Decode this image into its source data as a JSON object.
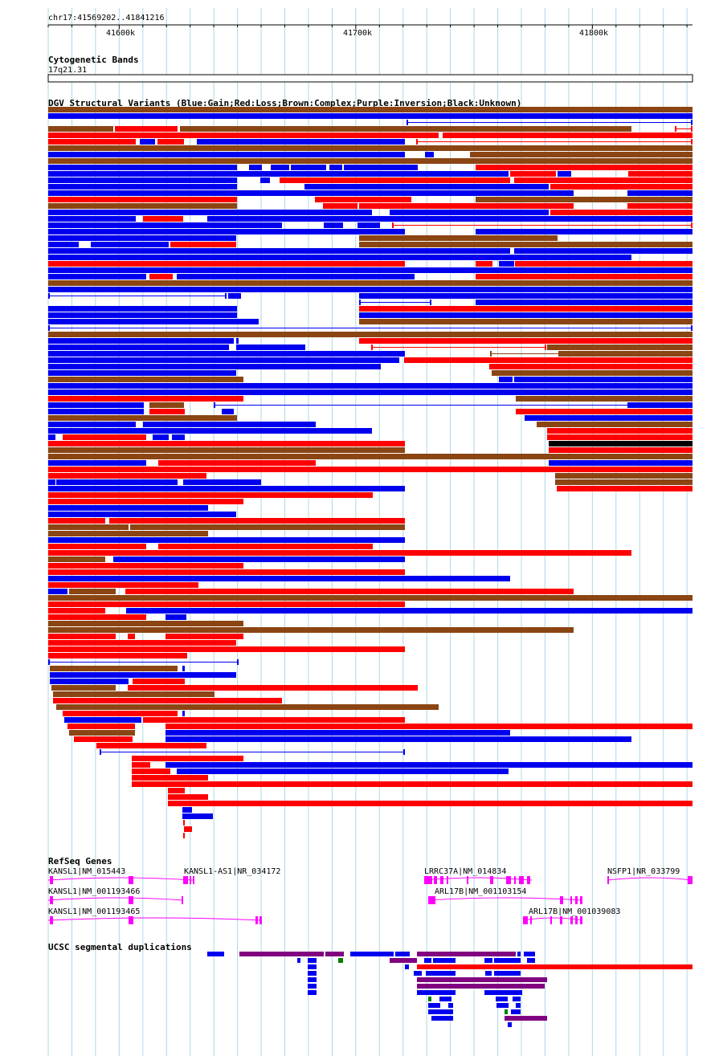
{
  "position": "chr17:41569202..41841216",
  "ruler": {
    "ticks": [
      {
        "label": "41600k",
        "bp": 41600000
      },
      {
        "label": "41700k",
        "bp": 41700000
      },
      {
        "label": "41800k",
        "bp": 41800000
      }
    ]
  },
  "tracks": {
    "cytobands": {
      "title": "Cytogenetic Bands",
      "band": "17q21.31"
    },
    "dgv": {
      "title": "DGV Structural Variants (Blue:Gain;Red:Loss;Brown:Complex;Purple:Inversion;Black:Unknown)"
    },
    "refseq": {
      "title": "RefSeq Genes"
    },
    "segdups": {
      "title": "UCSC segmental duplications"
    }
  },
  "colors": {
    "gain": "#0000ee",
    "loss": "#ff0000",
    "complex": "#8b4513",
    "unknown": "#000000",
    "gene": "#ff00ff",
    "segdup_blue": "#0000ee",
    "segdup_purple": "#800080",
    "segdup_green": "#008000",
    "segdup_red": "#ff0000",
    "grid": "#add8e6"
  },
  "genes": [
    {
      "label": "KANSL1|NM_015443"
    },
    {
      "label": "KANSL1-AS1|NR_034172"
    },
    {
      "label": "LRRC37A|NM_014834"
    },
    {
      "label": "NSFP1|NR_033799"
    },
    {
      "label": "KANSL1|NM_001193466"
    },
    {
      "label": "ARL17B|NM_001103154"
    },
    {
      "label": "KANSL1|NM_001193465"
    },
    {
      "label": "ARL17B|NM_001039083"
    }
  ]
}
